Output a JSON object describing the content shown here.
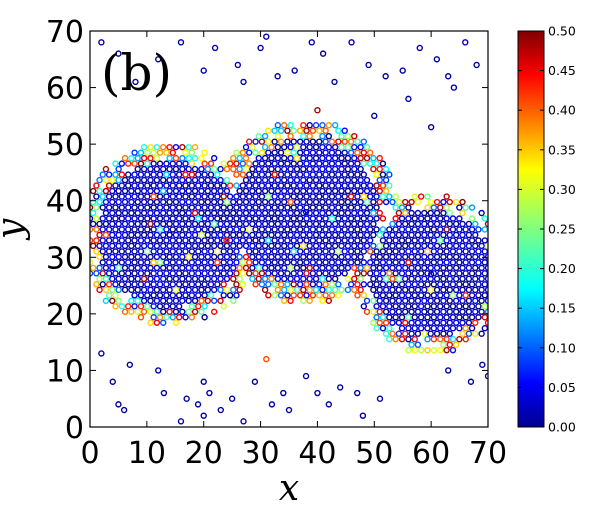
{
  "chart_data": {
    "type": "scatter",
    "title": "",
    "panel_label": "(b)",
    "xlabel": "x",
    "ylabel": "y",
    "xlim": [
      0,
      70
    ],
    "ylim": [
      0,
      70
    ],
    "xticks": [
      0,
      10,
      20,
      30,
      40,
      50,
      60,
      70
    ],
    "yticks": [
      0,
      10,
      20,
      30,
      40,
      50,
      60,
      70
    ],
    "colorbar": {
      "range": [
        0.0,
        0.5
      ],
      "ticks": [
        "0.00",
        "0.05",
        "0.10",
        "0.15",
        "0.20",
        "0.25",
        "0.30",
        "0.35",
        "0.40",
        "0.45",
        "0.50"
      ],
      "colormap": "jet"
    },
    "marker": "open circle",
    "cluster_regions": [
      {
        "name": "left",
        "center": [
          14,
          34
        ],
        "radius": 15
      },
      {
        "name": "middle",
        "center": [
          38,
          38
        ],
        "radius": 15
      },
      {
        "name": "right",
        "center": [
          60,
          27
        ],
        "radius": 13
      }
    ],
    "loose_points": [
      [
        2,
        68
      ],
      [
        5,
        66
      ],
      [
        8,
        61
      ],
      [
        12,
        65
      ],
      [
        16,
        68
      ],
      [
        20,
        63
      ],
      [
        22,
        67
      ],
      [
        26,
        64
      ],
      [
        27,
        61
      ],
      [
        30,
        67
      ],
      [
        31,
        69
      ],
      [
        33,
        62
      ],
      [
        36,
        63
      ],
      [
        39,
        68
      ],
      [
        41,
        66
      ],
      [
        43,
        61
      ],
      [
        46,
        68
      ],
      [
        49,
        64
      ],
      [
        52,
        62
      ],
      [
        55,
        63
      ],
      [
        58,
        67
      ],
      [
        61,
        65
      ],
      [
        63,
        62
      ],
      [
        66,
        68
      ],
      [
        68,
        64
      ],
      [
        50,
        55
      ],
      [
        56,
        58
      ],
      [
        60,
        53
      ],
      [
        64,
        60
      ],
      [
        2,
        13
      ],
      [
        4,
        8
      ],
      [
        5,
        4
      ],
      [
        7,
        11
      ],
      [
        12,
        10
      ],
      [
        13,
        6
      ],
      [
        17,
        5
      ],
      [
        19,
        4
      ],
      [
        20,
        8
      ],
      [
        21,
        6
      ],
      [
        23,
        3
      ],
      [
        25,
        5
      ],
      [
        27,
        1
      ],
      [
        32,
        4
      ],
      [
        35,
        3
      ],
      [
        40,
        6
      ],
      [
        42,
        4
      ],
      [
        44,
        7
      ],
      [
        47,
        6
      ],
      [
        48,
        2
      ],
      [
        51,
        5
      ],
      [
        63,
        10
      ],
      [
        67,
        8
      ],
      [
        70,
        9
      ],
      [
        69,
        11
      ],
      [
        20,
        2
      ],
      [
        16,
        1
      ],
      [
        6,
        3
      ],
      [
        34,
        6
      ],
      [
        38,
        9
      ],
      [
        29,
        8
      ]
    ],
    "points_sample": [
      {
        "x": 14,
        "y": 34,
        "value": 0.03
      },
      {
        "x": 38,
        "y": 38,
        "value": 0.04
      },
      {
        "x": 60,
        "y": 27,
        "value": 0.03
      },
      {
        "x": 40,
        "y": 56,
        "value": 0.48
      },
      {
        "x": 31,
        "y": 12,
        "value": 0.4
      },
      {
        "x": 24,
        "y": 33,
        "value": 0.43
      }
    ]
  }
}
